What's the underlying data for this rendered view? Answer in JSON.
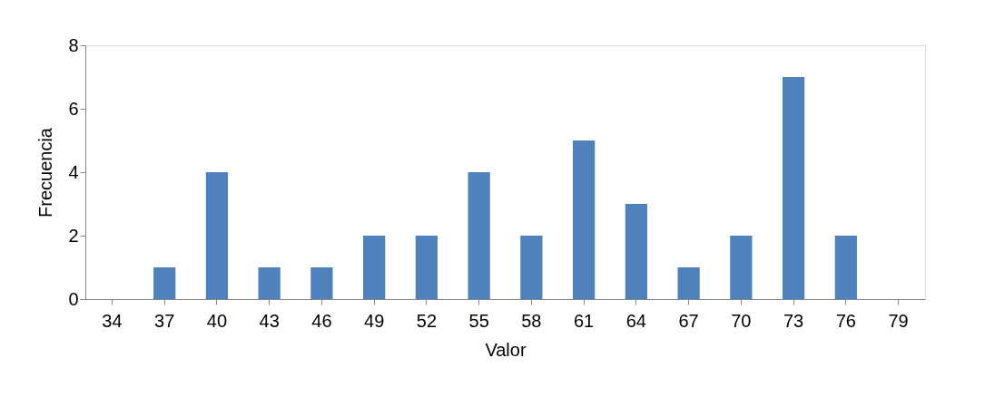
{
  "chart_data": {
    "type": "bar",
    "xlabel": "Valor",
    "ylabel": "Frecuencia",
    "categories": [
      "34",
      "37",
      "40",
      "43",
      "46",
      "49",
      "52",
      "55",
      "58",
      "61",
      "64",
      "67",
      "70",
      "73",
      "76",
      "79"
    ],
    "values": [
      0,
      1,
      4,
      1,
      1,
      2,
      2,
      4,
      2,
      5,
      3,
      1,
      2,
      7,
      2,
      0
    ],
    "color": "#4f81bd",
    "ylim": [
      0,
      8
    ],
    "yticks": [
      0,
      2,
      4,
      6,
      8
    ],
    "grid": false
  }
}
